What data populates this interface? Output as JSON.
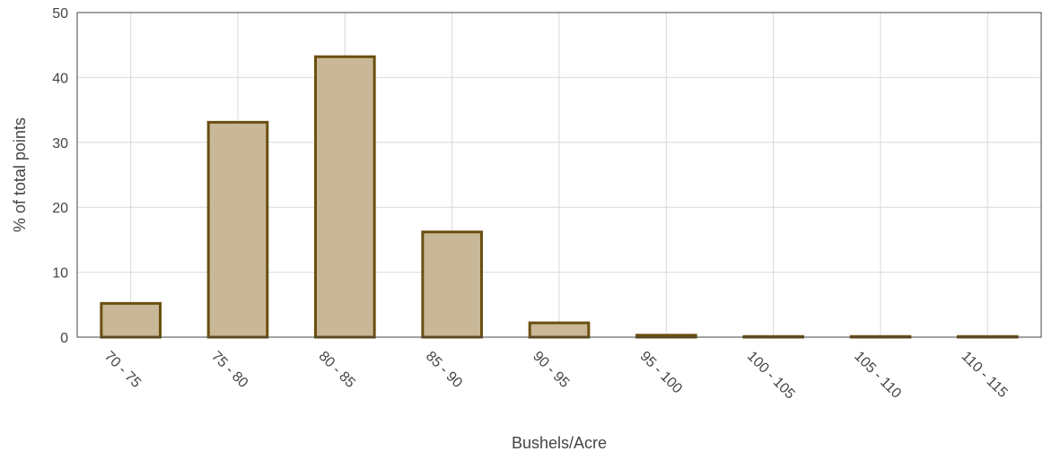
{
  "chart_data": {
    "type": "bar",
    "title": "",
    "xlabel": "Bushels/Acre",
    "ylabel": "% of total points",
    "categories": [
      "70 - 75",
      "75 - 80",
      "80 - 85",
      "85 - 90",
      "90 - 95",
      "95 - 100",
      "100 - 105",
      "105 - 110",
      "110 - 115"
    ],
    "values": [
      5.2,
      33.1,
      43.2,
      16.2,
      2.2,
      0.3,
      0.1,
      0.1,
      0.1
    ],
    "ylim": [
      0,
      50
    ],
    "y_ticks": [
      0,
      10,
      20,
      30,
      40,
      50
    ],
    "grid": true,
    "colors": {
      "bar_fill": "#c8b898",
      "bar_stroke": "#6b4f10",
      "grid": "#d9d9d9",
      "text": "#444444"
    }
  }
}
